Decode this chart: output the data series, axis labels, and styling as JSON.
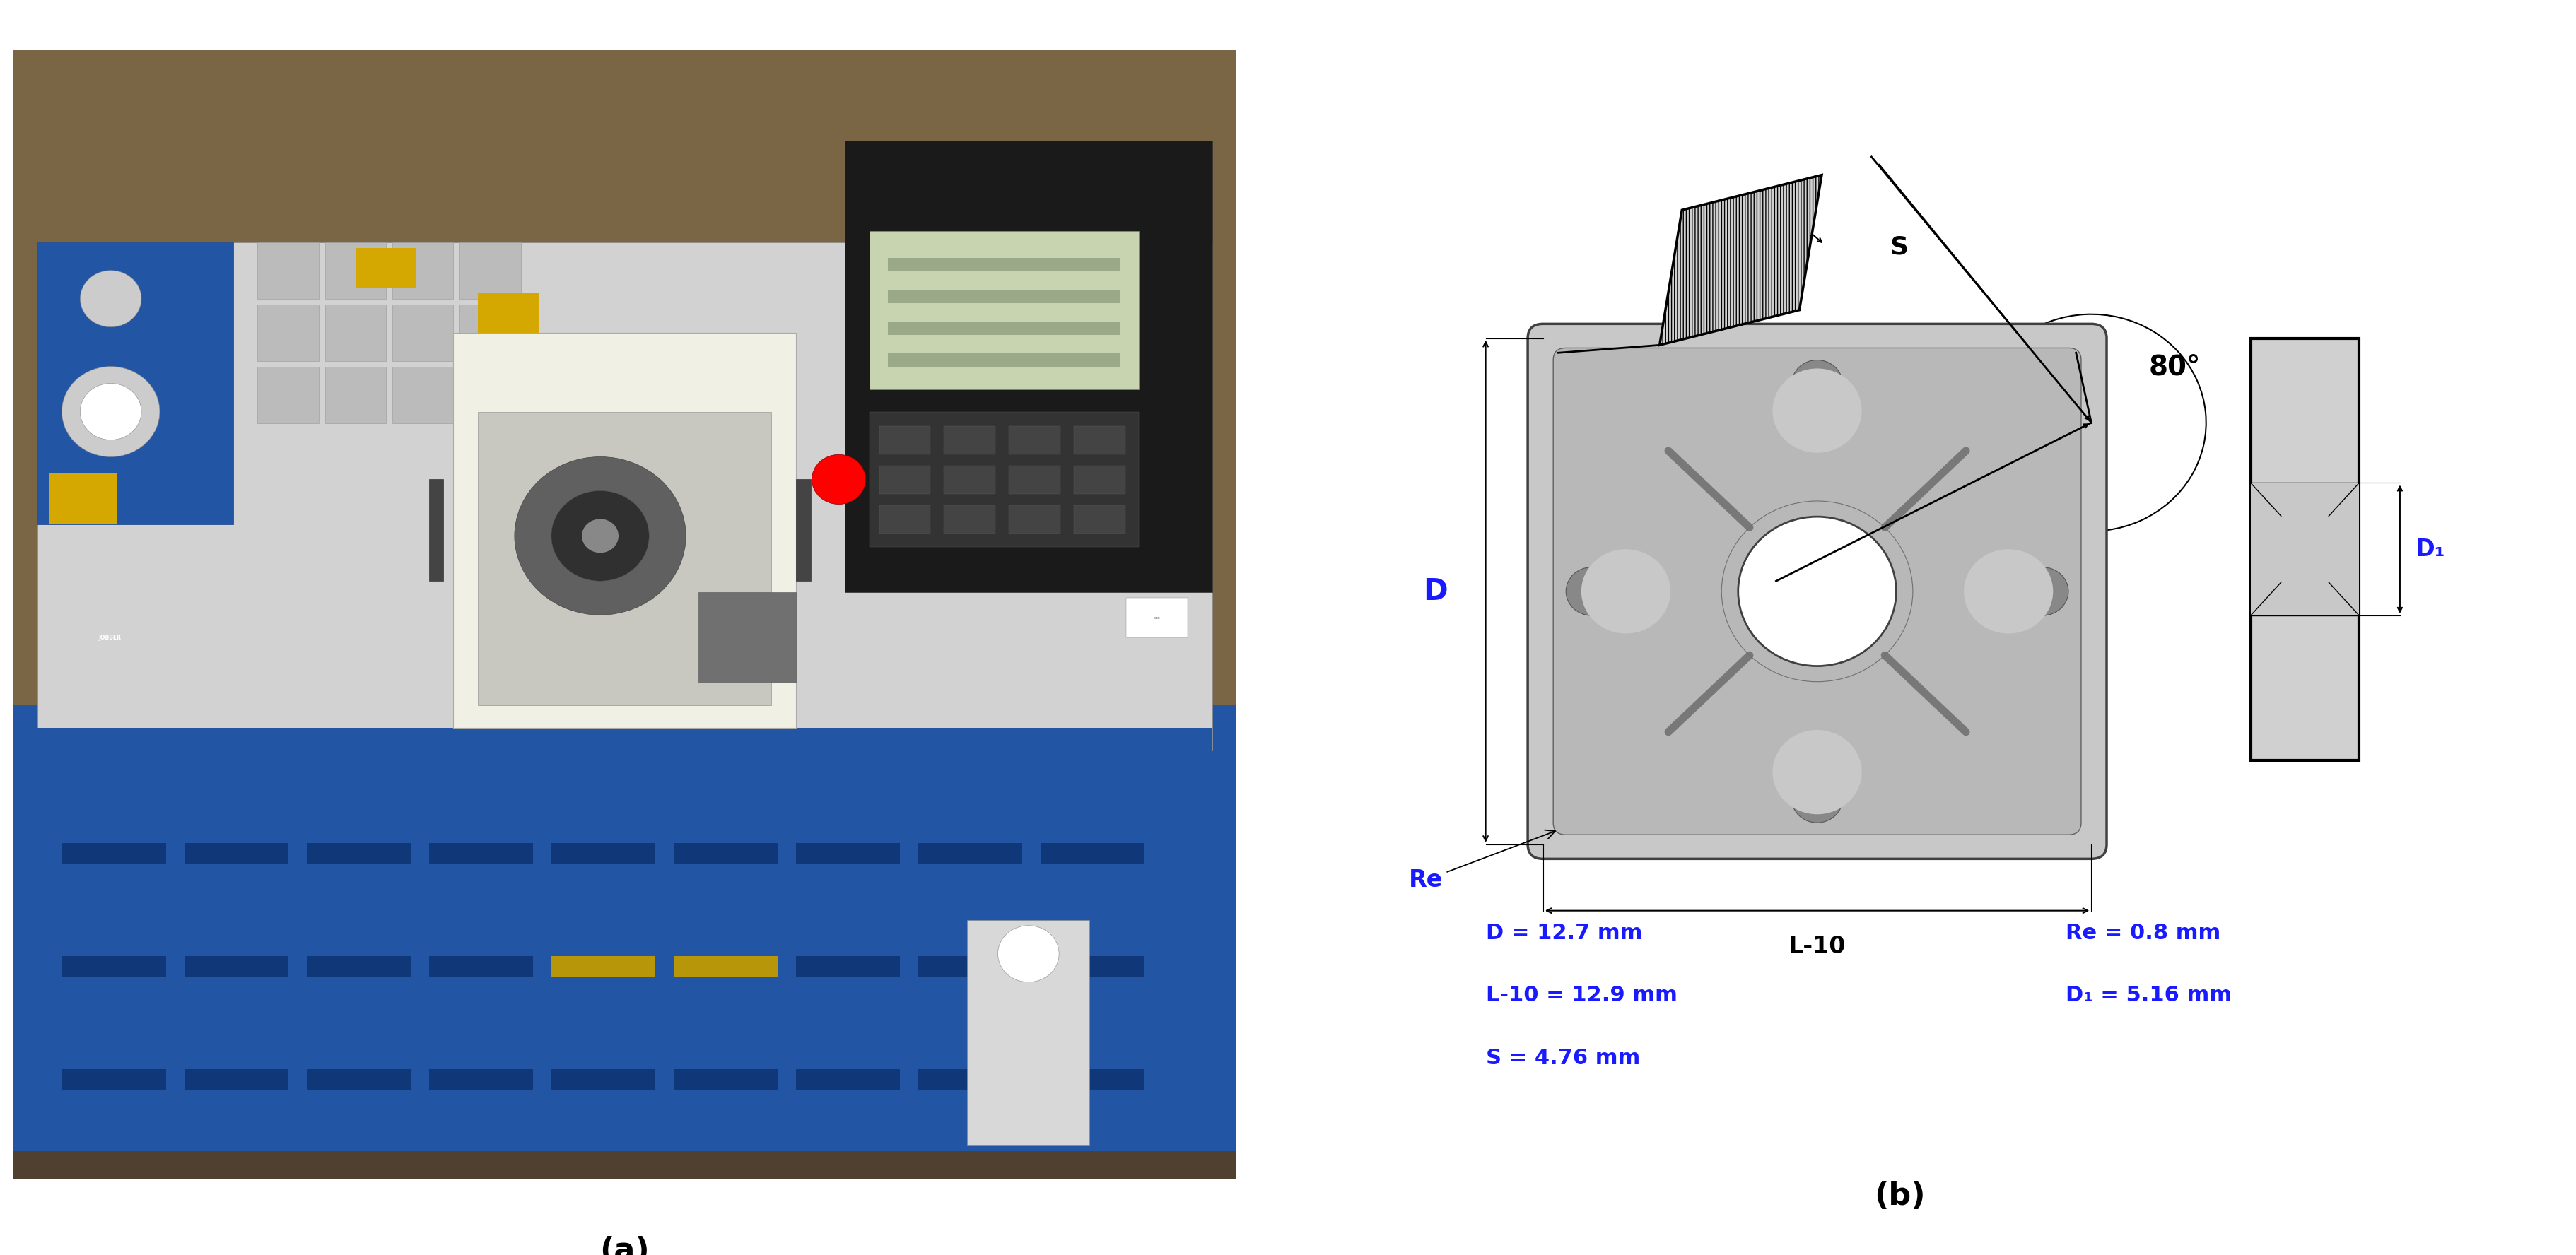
{
  "fig_width": 36.44,
  "fig_height": 17.76,
  "background_color": "#ffffff",
  "label_a": "(a)",
  "label_b": "(b)",
  "annot_D": "D = 12.7 mm",
  "annot_L10": "L-10 = 12.9 mm",
  "annot_S": "S = 4.76 mm",
  "annot_Re": "Re = 0.8 mm",
  "annot_D1": "D₁ = 5.16 mm",
  "dim_D": "D",
  "dim_L10": "L-10",
  "dim_S": "S",
  "dim_Re": "Re",
  "dim_D1": "D₁",
  "dim_angle": "80°",
  "blue": "#1a1aff",
  "black": "#000000",
  "gray_insert": "#C8C8C8",
  "gray_inner": "#B0B0B0",
  "gray_side": "#D0D0D0",
  "fs_label": 32,
  "fs_dim": 24,
  "fs_annot": 22,
  "lw_main": 2.0,
  "lw_dim": 1.5,
  "photo_bg": "#7A6545",
  "photo_blue": "#2255A4",
  "photo_gray": "#D2D2D2",
  "photo_darkgray": "#AAAAAA",
  "photo_black": "#1A1A1A",
  "photo_interior": "#F0F0E4",
  "photo_screen": "#C8D4B0"
}
